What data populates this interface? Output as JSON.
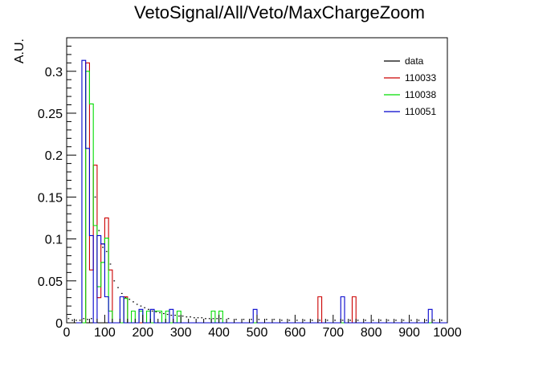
{
  "chart_data": {
    "type": "histogram",
    "title": "VetoSignal/All/Veto/MaxChargeZoom",
    "xlabel": "",
    "ylabel": "A.U.",
    "xlim": [
      0,
      1000
    ],
    "ylim": [
      0,
      0.34
    ],
    "bin_width": 10,
    "x_ticks": [
      0,
      100,
      200,
      300,
      400,
      500,
      600,
      700,
      800,
      900,
      1000
    ],
    "x_tick_labels": [
      "0",
      "100",
      "200",
      "300",
      "400",
      "500",
      "600",
      "700",
      "800",
      "900",
      "1000"
    ],
    "y_ticks": [
      0,
      0.05,
      0.1,
      0.15,
      0.2,
      0.25,
      0.3
    ],
    "y_tick_labels": [
      "0",
      "0.05",
      "0.1",
      "0.15",
      "0.2",
      "0.25",
      "0.3"
    ],
    "grid": false,
    "legend_position": "top-right",
    "series": [
      {
        "name": "data",
        "color": "#000000",
        "style": "marker",
        "bins": [
          [
            0,
            0.005
          ],
          [
            10,
            0.003
          ],
          [
            20,
            0.003
          ],
          [
            30,
            0.003
          ],
          [
            40,
            0.005
          ],
          [
            50,
            0.004
          ],
          [
            60,
            0.005
          ],
          [
            70,
            0.15
          ],
          [
            80,
            0.11
          ],
          [
            90,
            0.09
          ],
          [
            100,
            0.085
          ],
          [
            110,
            0.07
          ],
          [
            120,
            0.05
          ],
          [
            130,
            0.042
          ],
          [
            140,
            0.035
          ],
          [
            150,
            0.03
          ],
          [
            160,
            0.028
          ],
          [
            170,
            0.025
          ],
          [
            180,
            0.022
          ],
          [
            190,
            0.02
          ],
          [
            200,
            0.018
          ],
          [
            210,
            0.016
          ],
          [
            220,
            0.014
          ],
          [
            230,
            0.013
          ],
          [
            240,
            0.012
          ],
          [
            250,
            0.011
          ],
          [
            260,
            0.01
          ],
          [
            270,
            0.009
          ],
          [
            280,
            0.009
          ],
          [
            290,
            0.008
          ],
          [
            300,
            0.008
          ],
          [
            310,
            0.007
          ],
          [
            320,
            0.007
          ],
          [
            330,
            0.006
          ],
          [
            340,
            0.006
          ],
          [
            350,
            0.006
          ],
          [
            360,
            0.005
          ],
          [
            370,
            0.005
          ],
          [
            380,
            0.005
          ],
          [
            390,
            0.005
          ],
          [
            400,
            0.005
          ],
          [
            420,
            0.005
          ],
          [
            440,
            0.004
          ],
          [
            460,
            0.004
          ],
          [
            480,
            0.004
          ],
          [
            500,
            0.004
          ],
          [
            520,
            0.004
          ],
          [
            540,
            0.004
          ],
          [
            560,
            0.003
          ],
          [
            580,
            0.003
          ],
          [
            600,
            0.003
          ],
          [
            620,
            0.003
          ],
          [
            640,
            0.003
          ],
          [
            660,
            0.003
          ],
          [
            680,
            0.003
          ],
          [
            700,
            0.003
          ],
          [
            720,
            0.003
          ],
          [
            740,
            0.003
          ],
          [
            760,
            0.003
          ],
          [
            780,
            0.003
          ],
          [
            800,
            0.003
          ],
          [
            820,
            0.003
          ],
          [
            840,
            0.003
          ],
          [
            860,
            0.003
          ],
          [
            880,
            0.003
          ],
          [
            900,
            0.003
          ],
          [
            920,
            0.003
          ],
          [
            940,
            0.003
          ],
          [
            960,
            0.003
          ],
          [
            980,
            0.003
          ]
        ]
      },
      {
        "name": "110033",
        "color": "#cc0000",
        "style": "step",
        "bins": [
          [
            50,
            0.31
          ],
          [
            60,
            0.063
          ],
          [
            70,
            0.188
          ],
          [
            80,
            0.03
          ],
          [
            90,
            0.094
          ],
          [
            100,
            0.125
          ],
          [
            110,
            0.063
          ],
          [
            120,
            0.0
          ],
          [
            150,
            0.031
          ],
          [
            660,
            0.031
          ],
          [
            750,
            0.031
          ]
        ]
      },
      {
        "name": "110038",
        "color": "#00dd00",
        "style": "step",
        "bins": [
          [
            50,
            0.3
          ],
          [
            60,
            0.261
          ],
          [
            70,
            0.116
          ],
          [
            80,
            0.043
          ],
          [
            90,
            0.072
          ],
          [
            100,
            0.101
          ],
          [
            110,
            0.014
          ],
          [
            130,
            0.0
          ],
          [
            150,
            0.029
          ],
          [
            160,
            0.0
          ],
          [
            170,
            0.014
          ],
          [
            190,
            0.014
          ],
          [
            200,
            0.0
          ],
          [
            210,
            0.014
          ],
          [
            220,
            0.0
          ],
          [
            230,
            0.014
          ],
          [
            240,
            0.014
          ],
          [
            250,
            0.0
          ],
          [
            260,
            0.014
          ],
          [
            290,
            0.014
          ],
          [
            380,
            0.014
          ],
          [
            400,
            0.014
          ]
        ]
      },
      {
        "name": "110051",
        "color": "#0000cc",
        "style": "step",
        "bins": [
          [
            40,
            0.313
          ],
          [
            50,
            0.208
          ],
          [
            60,
            0.104
          ],
          [
            70,
            0.0
          ],
          [
            80,
            0.104
          ],
          [
            90,
            0.094
          ],
          [
            100,
            0.031
          ],
          [
            120,
            0.0
          ],
          [
            140,
            0.031
          ],
          [
            150,
            0.0
          ],
          [
            190,
            0.016
          ],
          [
            220,
            0.016
          ],
          [
            270,
            0.016
          ],
          [
            490,
            0.016
          ],
          [
            720,
            0.031
          ],
          [
            950,
            0.016
          ]
        ]
      }
    ]
  }
}
